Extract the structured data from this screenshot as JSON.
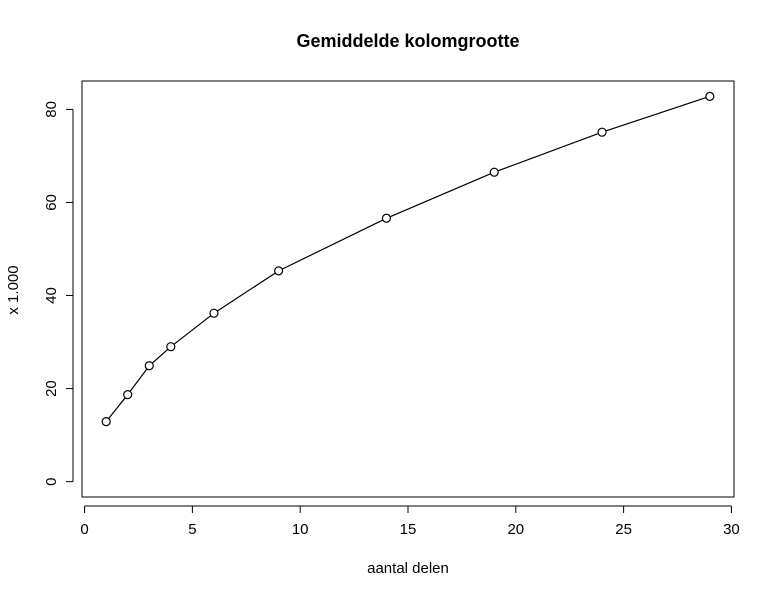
{
  "chart_data": {
    "type": "line",
    "title": "Gemiddelde kolomgrootte",
    "x_label": "aantal delen",
    "y_label": "x 1.000",
    "x": [
      1,
      2,
      3,
      4,
      6,
      9,
      14,
      19,
      24,
      29
    ],
    "series": [
      {
        "name": null,
        "color": "#000000",
        "values": [
          12.9,
          18.7,
          24.9,
          29.0,
          36.2,
          45.3,
          56.6,
          66.5,
          75.1,
          82.8
        ]
      }
    ],
    "xlim": [
      -0.12,
      30.12
    ],
    "xticks": [
      0,
      5,
      10,
      15,
      20,
      25,
      30
    ],
    "ylim": [
      -3.3,
      86.1
    ],
    "yticks": [
      0,
      20,
      40,
      60,
      80
    ],
    "grid": false
  }
}
